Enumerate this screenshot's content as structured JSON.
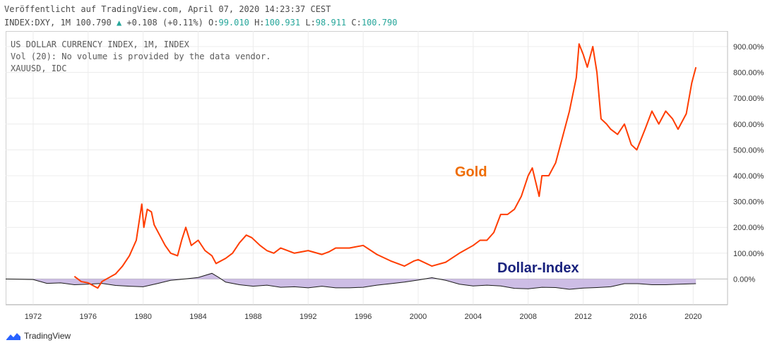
{
  "header": {
    "published": "Veröffentlicht auf TradingView.com, April 07, 2020 14:23:37 CEST",
    "symbol": "INDEX:DXY, 1M 100.790",
    "change_arrow": "▲",
    "change": "+0.108 (+0.11%)",
    "o_label": "O:",
    "o_value": "99.010",
    "h_label": "H:",
    "h_value": "100.931",
    "l_label": "L:",
    "l_value": "98.911",
    "c_label": "C:",
    "c_value": "100.790"
  },
  "legend": {
    "line1": "US DOLLAR CURRENCY INDEX, 1M, INDEX",
    "line2": "Vol (20): No volume is provided by the data vendor.",
    "line3": "XAUUSD, IDC"
  },
  "footer": {
    "brand": "TradingView"
  },
  "colors": {
    "gold": "#ff3d00",
    "gold_label": "#ef6c00",
    "dollar_label": "#1a237e",
    "dollar_fill": "#c8b6e2",
    "dollar_line": "#1a1a1a",
    "up": "#26a69a"
  },
  "chart_data": {
    "type": "line",
    "y_unit": "%",
    "ylim": [
      -100,
      960
    ],
    "xlim": [
      1970,
      2022.5
    ],
    "y_ticks": [
      "900.00%",
      "800.00%",
      "700.00%",
      "600.00%",
      "500.00%",
      "400.00%",
      "300.00%",
      "200.00%",
      "100.00%",
      "0.00%"
    ],
    "y_tick_values": [
      900,
      800,
      700,
      600,
      500,
      400,
      300,
      200,
      100,
      0
    ],
    "x_ticks": [
      "1972",
      "1976",
      "1980",
      "1984",
      "1988",
      "1992",
      "1996",
      "2000",
      "2004",
      "2008",
      "2012",
      "2016",
      "2020"
    ],
    "x_tick_values": [
      1972,
      1976,
      1980,
      1984,
      1988,
      1992,
      1996,
      2000,
      2004,
      2008,
      2012,
      2016,
      2020
    ],
    "grid": true,
    "annotations": {
      "gold": "Gold",
      "dollar": "Dollar-Index"
    },
    "series": [
      {
        "name": "Gold",
        "x": [
          1975.0,
          1975.5,
          1976.0,
          1976.7,
          1977.0,
          1977.5,
          1978.0,
          1978.5,
          1979.0,
          1979.5,
          1979.9,
          1980.05,
          1980.3,
          1980.6,
          1980.8,
          1981.2,
          1981.6,
          1982.0,
          1982.5,
          1982.8,
          1983.1,
          1983.5,
          1984.0,
          1984.5,
          1985.0,
          1985.3,
          1986.0,
          1986.5,
          1987.0,
          1987.5,
          1987.9,
          1988.5,
          1989.0,
          1989.5,
          1990.0,
          1991.0,
          1992.0,
          1993.0,
          1993.5,
          1994.0,
          1995.0,
          1996.0,
          1997.0,
          1998.0,
          1999.0,
          1999.7,
          2000.0,
          2001.0,
          2002.0,
          2003.0,
          2004.0,
          2004.5,
          2005.0,
          2005.5,
          2006.0,
          2006.5,
          2007.0,
          2007.5,
          2008.0,
          2008.3,
          2008.8,
          2009.0,
          2009.5,
          2010.0,
          2010.5,
          2011.0,
          2011.5,
          2011.7,
          2012.0,
          2012.3,
          2012.7,
          2013.0,
          2013.3,
          2013.7,
          2014.0,
          2014.5,
          2015.0,
          2015.5,
          2015.9,
          2016.5,
          2017.0,
          2017.5,
          2018.0,
          2018.5,
          2018.9,
          2019.5,
          2019.9,
          2020.2
        ],
        "values": [
          10,
          -10,
          -15,
          -35,
          -10,
          5,
          20,
          50,
          90,
          150,
          290,
          200,
          270,
          260,
          210,
          170,
          130,
          100,
          90,
          150,
          200,
          130,
          150,
          110,
          90,
          60,
          80,
          100,
          140,
          170,
          160,
          130,
          110,
          100,
          120,
          100,
          110,
          95,
          105,
          120,
          120,
          130,
          95,
          70,
          50,
          70,
          75,
          50,
          65,
          100,
          130,
          150,
          150,
          180,
          250,
          250,
          270,
          320,
          400,
          430,
          320,
          400,
          400,
          450,
          550,
          650,
          780,
          910,
          870,
          820,
          900,
          800,
          620,
          600,
          580,
          560,
          600,
          520,
          500,
          580,
          650,
          600,
          650,
          620,
          580,
          640,
          760,
          820
        ]
      },
      {
        "name": "Dollar-Index",
        "x": [
          1970.0,
          1972.0,
          1973.0,
          1974.0,
          1975.0,
          1976.0,
          1977.0,
          1978.0,
          1979.0,
          1980.0,
          1981.0,
          1982.0,
          1983.0,
          1984.0,
          1985.0,
          1985.5,
          1986.0,
          1987.0,
          1988.0,
          1989.0,
          1990.0,
          1991.0,
          1992.0,
          1993.0,
          1994.0,
          1995.0,
          1996.0,
          1997.0,
          1998.0,
          1999.0,
          2000.0,
          2001.0,
          2002.0,
          2003.0,
          2004.0,
          2005.0,
          2006.0,
          2007.0,
          2008.0,
          2009.0,
          2010.0,
          2011.0,
          2012.0,
          2013.0,
          2014.0,
          2015.0,
          2016.0,
          2017.0,
          2018.0,
          2019.0,
          2020.2
        ],
        "values": [
          0,
          -2,
          -17,
          -15,
          -22,
          -20,
          -17,
          -25,
          -28,
          -30,
          -18,
          -5,
          0,
          6,
          22,
          6,
          -12,
          -22,
          -28,
          -24,
          -32,
          -30,
          -34,
          -28,
          -34,
          -34,
          -32,
          -24,
          -18,
          -12,
          -4,
          5,
          -5,
          -20,
          -27,
          -24,
          -27,
          -36,
          -38,
          -32,
          -33,
          -40,
          -35,
          -33,
          -30,
          -18,
          -18,
          -22,
          -22,
          -20,
          -18
        ]
      }
    ]
  }
}
